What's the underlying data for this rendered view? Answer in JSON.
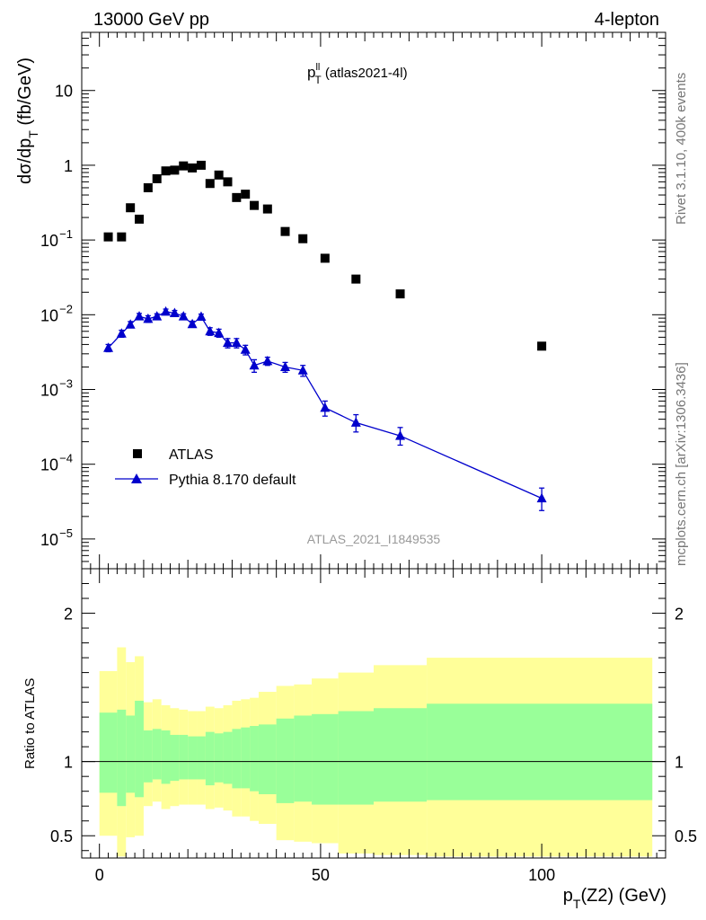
{
  "header": {
    "left": "13000 GeV pp",
    "right": "4-lepton"
  },
  "side_labels": {
    "rivet": "Rivet 3.1.10,  400k events",
    "mcplots": "mcplots.cern.ch [arXiv:1306.3436]"
  },
  "watermark": "ATLAS_2021_I1849535",
  "chart_data": [
    {
      "type": "scatter",
      "title": {
        "main": "p",
        "sup": "ll",
        "sub": "T",
        "rest": " (atlas2021-4l)"
      },
      "ylabel": {
        "main": "dσ/dp",
        "sub": "T",
        "rest": " (fb/GeV)"
      },
      "yscale": "log",
      "ylim": [
        4e-06,
        60
      ],
      "xlim": [
        -4,
        128
      ],
      "y_ticks": [
        {
          "v": 10,
          "text": "10"
        },
        {
          "v": 1,
          "text": "1"
        },
        {
          "v": 0.1,
          "base": "10",
          "exp": "−1"
        },
        {
          "v": 0.01,
          "base": "10",
          "exp": "−2"
        },
        {
          "v": 0.001,
          "base": "10",
          "exp": "−3"
        },
        {
          "v": 0.0001,
          "base": "10",
          "exp": "−4"
        },
        {
          "v": 1e-05,
          "base": "10",
          "exp": "−5"
        }
      ],
      "legend_position": "bottom-left",
      "series": [
        {
          "name": "ATLAS",
          "marker": "square",
          "color": "#000000",
          "x": [
            2,
            5,
            7,
            9,
            11,
            13,
            15,
            17,
            19,
            21,
            23,
            25,
            27,
            29,
            31,
            33,
            35,
            38,
            42,
            46,
            51,
            58,
            68,
            100
          ],
          "y": [
            0.11,
            0.11,
            0.27,
            0.19,
            0.5,
            0.66,
            0.84,
            0.86,
            0.98,
            0.92,
            1.0,
            0.57,
            0.74,
            0.6,
            0.37,
            0.41,
            0.29,
            0.26,
            0.13,
            0.104,
            0.057,
            0.03,
            0.019,
            0.0038
          ]
        },
        {
          "name": "Pythia 8.170 default",
          "marker": "triangle",
          "color": "#0000cc",
          "x": [
            2,
            5,
            7,
            9,
            11,
            13,
            15,
            17,
            19,
            21,
            23,
            25,
            27,
            29,
            31,
            33,
            35,
            38,
            42,
            46,
            51,
            58,
            68,
            100
          ],
          "y": [
            0.0036,
            0.0056,
            0.0074,
            0.0095,
            0.0088,
            0.0095,
            0.011,
            0.0105,
            0.0095,
            0.0075,
            0.0094,
            0.006,
            0.0057,
            0.0042,
            0.0042,
            0.0034,
            0.0021,
            0.0024,
            0.002,
            0.0018,
            0.00057,
            0.00036,
            0.00024,
            3.5e-05
          ],
          "err_lo": [
            0.0032,
            0.005,
            0.0067,
            0.0086,
            0.0079,
            0.0087,
            0.0101,
            0.0096,
            0.0087,
            0.0068,
            0.0086,
            0.0053,
            0.005,
            0.0036,
            0.0036,
            0.0029,
            0.0017,
            0.0021,
            0.0017,
            0.0015,
            0.00044,
            0.00027,
            0.00018,
            2.4e-05
          ],
          "err_hi": [
            0.004,
            0.0062,
            0.0081,
            0.0104,
            0.0097,
            0.0103,
            0.0119,
            0.0114,
            0.0103,
            0.0082,
            0.0102,
            0.0067,
            0.0064,
            0.0048,
            0.0048,
            0.0039,
            0.0025,
            0.0027,
            0.0023,
            0.0021,
            0.0007,
            0.00046,
            0.00031,
            4.8e-05
          ]
        }
      ]
    },
    {
      "type": "area",
      "ylabel": "Ratio to ATLAS",
      "xlabel": {
        "main": "p",
        "sub": "T",
        "rest": "(Z2) (GeV)"
      },
      "ylim": [
        0.35,
        2.3
      ],
      "xlim": [
        -4,
        128
      ],
      "x_ticks": [
        0,
        50,
        100
      ],
      "y_ticks": [
        2,
        1,
        0.5
      ],
      "reference_line": 1,
      "bins": [
        0,
        4,
        6,
        8,
        10,
        12,
        14,
        16,
        18,
        20,
        22,
        24,
        26,
        28,
        30,
        32,
        34,
        36,
        40,
        44,
        48,
        54,
        62,
        74,
        125
      ],
      "stat_lo": [
        0.79,
        0.7,
        0.79,
        0.76,
        0.86,
        0.88,
        0.85,
        0.87,
        0.88,
        0.88,
        0.88,
        0.84,
        0.86,
        0.85,
        0.82,
        0.82,
        0.8,
        0.78,
        0.72,
        0.73,
        0.71,
        0.71,
        0.73,
        0.74
      ],
      "stat_hi": [
        1.33,
        1.35,
        1.31,
        1.41,
        1.21,
        1.22,
        1.21,
        1.18,
        1.18,
        1.17,
        1.17,
        1.2,
        1.19,
        1.2,
        1.22,
        1.23,
        1.24,
        1.25,
        1.29,
        1.31,
        1.32,
        1.34,
        1.36,
        1.39
      ],
      "tot_lo": [
        0.5,
        0.36,
        0.49,
        0.5,
        0.7,
        0.73,
        0.68,
        0.7,
        0.71,
        0.71,
        0.71,
        0.68,
        0.69,
        0.67,
        0.63,
        0.63,
        0.6,
        0.58,
        0.47,
        0.46,
        0.45,
        0.38,
        0.37,
        0.36
      ],
      "tot_hi": [
        1.61,
        1.77,
        1.67,
        1.71,
        1.4,
        1.42,
        1.38,
        1.36,
        1.35,
        1.34,
        1.34,
        1.37,
        1.36,
        1.38,
        1.41,
        1.42,
        1.43,
        1.47,
        1.51,
        1.52,
        1.56,
        1.6,
        1.65,
        1.7
      ],
      "band_colors": {
        "total": "#ffff99",
        "stat": "#99ff99"
      }
    }
  ]
}
